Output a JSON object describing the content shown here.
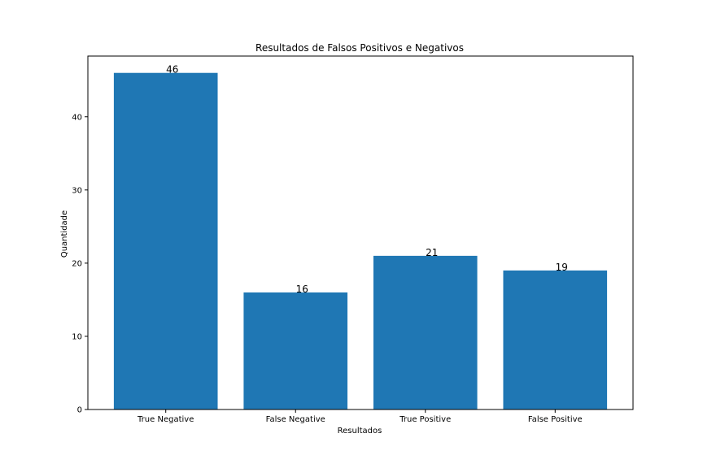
{
  "chart_data": {
    "type": "bar",
    "title": "Resultados de Falsos Positivos e Negativos",
    "xlabel": "Resultados",
    "ylabel": "Quantidade",
    "categories": [
      "True Negative",
      "False Negative",
      "True Positive",
      "False Positive"
    ],
    "values": [
      46,
      16,
      21,
      19
    ],
    "data_labels": [
      "46",
      "16",
      "21",
      "19"
    ],
    "yticks": [
      0,
      10,
      20,
      30,
      40
    ],
    "ylim": [
      0,
      48.3
    ],
    "grid": false,
    "bar_color": "#1f77b4"
  }
}
